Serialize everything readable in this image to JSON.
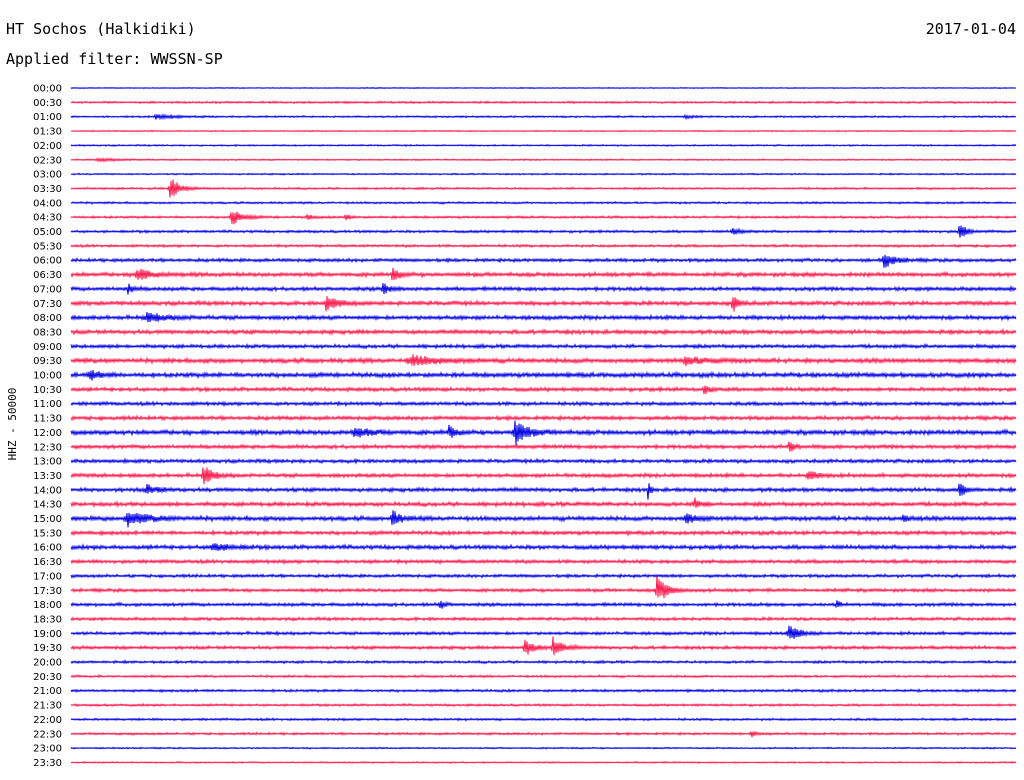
{
  "header": {
    "station": "HT Sochos (Halkidiki)",
    "date": "2017-01-04",
    "filter": "Applied filter: WWSSN-SP"
  },
  "chart_data": {
    "type": "helicorder",
    "ylabel": "HHZ - 50000",
    "colors": [
      "#0000e6",
      "#ff1a4d"
    ],
    "rows": [
      "00:00",
      "00:30",
      "01:00",
      "01:30",
      "02:00",
      "02:30",
      "03:00",
      "03:30",
      "04:00",
      "04:30",
      "05:00",
      "05:30",
      "06:00",
      "06:30",
      "07:00",
      "07:30",
      "08:00",
      "08:30",
      "09:00",
      "09:30",
      "10:00",
      "10:30",
      "11:00",
      "11:30",
      "12:00",
      "12:30",
      "13:00",
      "13:30",
      "14:00",
      "14:30",
      "15:00",
      "15:30",
      "16:00",
      "16:30",
      "17:00",
      "17:30",
      "18:00",
      "18:30",
      "19:00",
      "19:30",
      "20:00",
      "20:30",
      "21:00",
      "21:30",
      "22:00",
      "22:30",
      "23:00",
      "23:30"
    ],
    "noise": [
      0.4,
      0.8,
      0.7,
      0.5,
      0.6,
      0.6,
      0.6,
      0.8,
      0.8,
      0.9,
      1.0,
      1.0,
      1.3,
      1.6,
      1.5,
      1.6,
      1.6,
      1.6,
      1.4,
      1.8,
      1.8,
      1.5,
      1.4,
      1.5,
      1.8,
      1.5,
      1.4,
      1.5,
      1.5,
      1.6,
      1.7,
      1.5,
      1.6,
      1.4,
      1.2,
      1.3,
      1.3,
      1.2,
      1.2,
      1.3,
      1.0,
      0.9,
      1.0,
      0.9,
      0.9,
      0.9,
      0.6,
      0.6
    ],
    "events": [
      {
        "row": 2,
        "t": 0.09,
        "amp": 2,
        "w": 0.02
      },
      {
        "row": 2,
        "t": 0.65,
        "amp": 1.5,
        "w": 0.01
      },
      {
        "row": 5,
        "t": 0.03,
        "amp": 1.5,
        "w": 0.02
      },
      {
        "row": 7,
        "t": 0.105,
        "amp": 13,
        "w": 0.008
      },
      {
        "row": 9,
        "t": 0.17,
        "amp": 9,
        "w": 0.01
      },
      {
        "row": 9,
        "t": 0.25,
        "amp": 3,
        "w": 0.005
      },
      {
        "row": 9,
        "t": 0.29,
        "amp": 3,
        "w": 0.005
      },
      {
        "row": 10,
        "t": 0.7,
        "amp": 4,
        "w": 0.006
      },
      {
        "row": 10,
        "t": 0.94,
        "amp": 12,
        "w": 0.005
      },
      {
        "row": 12,
        "t": 0.86,
        "amp": 8,
        "w": 0.01
      },
      {
        "row": 13,
        "t": 0.07,
        "amp": 6,
        "w": 0.015
      },
      {
        "row": 13,
        "t": 0.34,
        "amp": 7,
        "w": 0.006
      },
      {
        "row": 14,
        "t": 0.06,
        "amp": 5,
        "w": 0.005
      },
      {
        "row": 14,
        "t": 0.33,
        "amp": 7,
        "w": 0.005
      },
      {
        "row": 15,
        "t": 0.27,
        "amp": 8,
        "w": 0.01
      },
      {
        "row": 15,
        "t": 0.7,
        "amp": 9,
        "w": 0.005
      },
      {
        "row": 16,
        "t": 0.08,
        "amp": 4,
        "w": 0.02
      },
      {
        "row": 19,
        "t": 0.36,
        "amp": 5,
        "w": 0.025
      },
      {
        "row": 19,
        "t": 0.65,
        "amp": 4,
        "w": 0.02
      },
      {
        "row": 20,
        "t": 0.02,
        "amp": 5,
        "w": 0.01
      },
      {
        "row": 21,
        "t": 0.67,
        "amp": 6,
        "w": 0.005
      },
      {
        "row": 24,
        "t": 0.3,
        "amp": 5,
        "w": 0.015
      },
      {
        "row": 24,
        "t": 0.4,
        "amp": 7,
        "w": 0.005
      },
      {
        "row": 24,
        "t": 0.47,
        "amp": 12,
        "w": 0.012
      },
      {
        "row": 25,
        "t": 0.76,
        "amp": 8,
        "w": 0.004
      },
      {
        "row": 27,
        "t": 0.14,
        "amp": 11,
        "w": 0.008
      },
      {
        "row": 27,
        "t": 0.78,
        "amp": 4,
        "w": 0.01
      },
      {
        "row": 28,
        "t": 0.08,
        "amp": 5,
        "w": 0.01
      },
      {
        "row": 28,
        "t": 0.61,
        "amp": 14,
        "w": 0.002
      },
      {
        "row": 28,
        "t": 0.94,
        "amp": 11,
        "w": 0.004
      },
      {
        "row": 29,
        "t": 0.66,
        "amp": 6,
        "w": 0.005
      },
      {
        "row": 30,
        "t": 0.06,
        "amp": 7,
        "w": 0.02
      },
      {
        "row": 30,
        "t": 0.34,
        "amp": 9,
        "w": 0.007
      },
      {
        "row": 30,
        "t": 0.65,
        "amp": 5,
        "w": 0.01
      },
      {
        "row": 30,
        "t": 0.88,
        "amp": 4,
        "w": 0.005
      },
      {
        "row": 32,
        "t": 0.15,
        "amp": 4,
        "w": 0.015
      },
      {
        "row": 35,
        "t": 0.62,
        "amp": 14,
        "w": 0.01
      },
      {
        "row": 36,
        "t": 0.39,
        "amp": 6,
        "w": 0.004
      },
      {
        "row": 36,
        "t": 0.81,
        "amp": 5,
        "w": 0.003
      },
      {
        "row": 38,
        "t": 0.76,
        "amp": 8,
        "w": 0.01
      },
      {
        "row": 39,
        "t": 0.48,
        "amp": 9,
        "w": 0.008
      },
      {
        "row": 39,
        "t": 0.51,
        "amp": 11,
        "w": 0.008
      },
      {
        "row": 45,
        "t": 0.72,
        "amp": 4,
        "w": 0.005
      }
    ]
  }
}
